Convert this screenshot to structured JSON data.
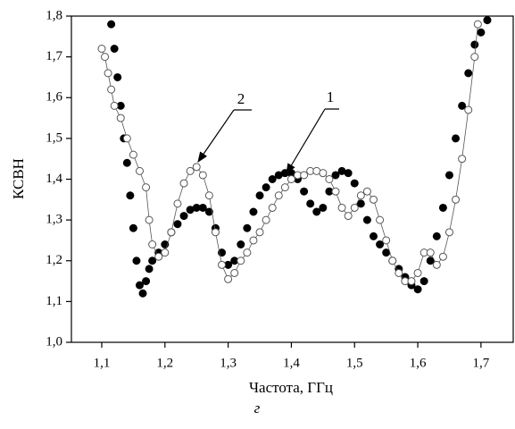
{
  "chart_data": {
    "type": "scatter",
    "caption": "г",
    "x_label": "Частота, ГГц",
    "y_label": "КСВН",
    "xlim": [
      1.052,
      1.751
    ],
    "ylim": [
      1.0,
      1.8
    ],
    "xticks": [
      {
        "value": 1.1,
        "label": "1,1"
      },
      {
        "value": 1.2,
        "label": "1,2"
      },
      {
        "value": 1.3,
        "label": "1,3"
      },
      {
        "value": 1.4,
        "label": "1,4"
      },
      {
        "value": 1.5,
        "label": "1,5"
      },
      {
        "value": 1.6,
        "label": "1,6"
      },
      {
        "value": 1.7,
        "label": "1,7"
      }
    ],
    "yticks": [
      {
        "value": 1.0,
        "label": "1,0"
      },
      {
        "value": 1.1,
        "label": "1,1"
      },
      {
        "value": 1.2,
        "label": "1,2"
      },
      {
        "value": 1.3,
        "label": "1,3"
      },
      {
        "value": 1.4,
        "label": "1,4"
      },
      {
        "value": 1.5,
        "label": "1,5"
      },
      {
        "value": 1.6,
        "label": "1,6"
      },
      {
        "value": 1.7,
        "label": "1,7"
      },
      {
        "value": 1.8,
        "label": "1,8"
      }
    ],
    "series": [
      {
        "name": "1",
        "color": "#000000",
        "marker": "filled",
        "x": [
          1.115,
          1.12,
          1.125,
          1.13,
          1.135,
          1.14,
          1.145,
          1.15,
          1.155,
          1.16,
          1.165,
          1.17,
          1.175,
          1.18,
          1.19,
          1.2,
          1.21,
          1.22,
          1.23,
          1.24,
          1.25,
          1.26,
          1.27,
          1.28,
          1.29,
          1.3,
          1.31,
          1.32,
          1.33,
          1.34,
          1.35,
          1.36,
          1.37,
          1.38,
          1.39,
          1.4,
          1.41,
          1.42,
          1.43,
          1.44,
          1.45,
          1.46,
          1.47,
          1.48,
          1.49,
          1.5,
          1.51,
          1.52,
          1.53,
          1.54,
          1.55,
          1.56,
          1.57,
          1.58,
          1.59,
          1.6,
          1.61,
          1.62,
          1.63,
          1.64,
          1.65,
          1.66,
          1.67,
          1.68,
          1.69,
          1.7,
          1.71
        ],
        "values": [
          1.78,
          1.72,
          1.65,
          1.58,
          1.5,
          1.44,
          1.36,
          1.28,
          1.2,
          1.14,
          1.12,
          1.15,
          1.18,
          1.2,
          1.22,
          1.24,
          1.27,
          1.29,
          1.31,
          1.325,
          1.33,
          1.33,
          1.32,
          1.28,
          1.22,
          1.19,
          1.2,
          1.24,
          1.28,
          1.32,
          1.36,
          1.38,
          1.4,
          1.41,
          1.415,
          1.415,
          1.4,
          1.37,
          1.34,
          1.32,
          1.33,
          1.37,
          1.41,
          1.42,
          1.415,
          1.39,
          1.34,
          1.3,
          1.26,
          1.24,
          1.22,
          1.2,
          1.18,
          1.16,
          1.14,
          1.13,
          1.15,
          1.2,
          1.26,
          1.33,
          1.41,
          1.5,
          1.58,
          1.66,
          1.73,
          1.76,
          1.79
        ]
      },
      {
        "name": "2",
        "color": "#555555",
        "marker": "open",
        "x": [
          1.1,
          1.105,
          1.11,
          1.115,
          1.12,
          1.13,
          1.14,
          1.15,
          1.16,
          1.17,
          1.175,
          1.18,
          1.19,
          1.2,
          1.21,
          1.22,
          1.23,
          1.24,
          1.25,
          1.26,
          1.27,
          1.28,
          1.29,
          1.3,
          1.31,
          1.32,
          1.33,
          1.34,
          1.35,
          1.36,
          1.37,
          1.38,
          1.39,
          1.4,
          1.41,
          1.42,
          1.43,
          1.44,
          1.45,
          1.46,
          1.47,
          1.48,
          1.49,
          1.5,
          1.51,
          1.52,
          1.53,
          1.54,
          1.55,
          1.56,
          1.57,
          1.58,
          1.59,
          1.6,
          1.61,
          1.62,
          1.63,
          1.64,
          1.65,
          1.66,
          1.67,
          1.68,
          1.69,
          1.695
        ],
        "values": [
          1.72,
          1.7,
          1.66,
          1.62,
          1.58,
          1.55,
          1.5,
          1.46,
          1.42,
          1.38,
          1.3,
          1.24,
          1.21,
          1.22,
          1.27,
          1.34,
          1.39,
          1.42,
          1.43,
          1.41,
          1.36,
          1.27,
          1.19,
          1.155,
          1.17,
          1.2,
          1.22,
          1.25,
          1.27,
          1.3,
          1.33,
          1.36,
          1.38,
          1.4,
          1.41,
          1.41,
          1.42,
          1.42,
          1.415,
          1.4,
          1.37,
          1.33,
          1.31,
          1.33,
          1.36,
          1.37,
          1.35,
          1.3,
          1.25,
          1.2,
          1.17,
          1.15,
          1.15,
          1.17,
          1.22,
          1.22,
          1.19,
          1.21,
          1.27,
          1.35,
          1.45,
          1.57,
          1.7,
          1.78
        ]
      }
    ]
  }
}
